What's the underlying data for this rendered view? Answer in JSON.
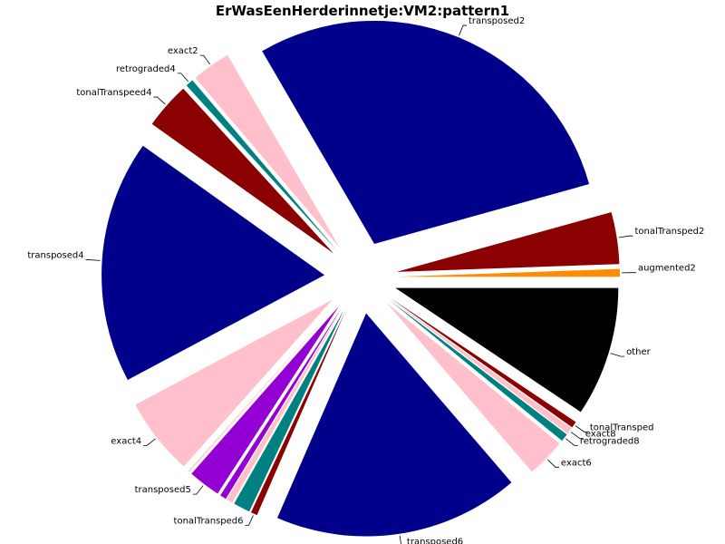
{
  "chart_data": {
    "type": "pie",
    "title": "ErWasEenHerderinnetje:VM2:pattern1",
    "slices": [
      {
        "label": "other",
        "value": 10.0,
        "color": "#000000",
        "explode": true
      },
      {
        "label": "tonalTransped",
        "value": 0.5,
        "color": "#8b0000",
        "explode": true
      },
      {
        "label": "exact8",
        "value": 0.5,
        "color": "#ffc0cb",
        "explode": true
      },
      {
        "label": "retrograded8",
        "value": 0.6,
        "color": "#008080",
        "explode": true
      },
      {
        "label": "exact6",
        "value": 3.0,
        "color": "#ffc0cb",
        "explode": true
      },
      {
        "label": "transposed6",
        "value": 19.0,
        "color": "#00008b",
        "explode": true
      },
      {
        "label": "tonalTransped6",
        "value": 0.5,
        "color": "#8b0000",
        "explode": true
      },
      {
        "label": "",
        "value": 1.3,
        "color": "#008080",
        "explode": true
      },
      {
        "label": "",
        "value": 0.5,
        "color": "#ffc0cb",
        "explode": true
      },
      {
        "label": "",
        "value": 0.5,
        "color": "#9400d3",
        "explode": true
      },
      {
        "label": "transposed5",
        "value": 2.5,
        "color": "#9400d3",
        "explode": true
      },
      {
        "label": "",
        "value": 0.1,
        "color": "#ffc0cb",
        "explode": true
      },
      {
        "label": "exact4",
        "value": 6.0,
        "color": "#ffc0cb",
        "explode": true
      },
      {
        "label": "transposed4",
        "value": 18.8,
        "color": "#00008b",
        "explode": true
      },
      {
        "label": "tonalTranspeed4",
        "value": 3.6,
        "color": "#8b0000",
        "explode": true
      },
      {
        "label": "retrograded4",
        "value": 0.6,
        "color": "#008080",
        "explode": true
      },
      {
        "label": "exact2",
        "value": 3.0,
        "color": "#ffc0cb",
        "explode": true
      },
      {
        "label": "transposed2",
        "value": 31.0,
        "color": "#00008b",
        "explode": true
      },
      {
        "label": "tonalTransped2",
        "value": 4.0,
        "color": "#8b0000",
        "explode": true
      },
      {
        "label": "augmented2",
        "value": 0.6,
        "color": "#ff8c00",
        "explode": true
      }
    ]
  }
}
